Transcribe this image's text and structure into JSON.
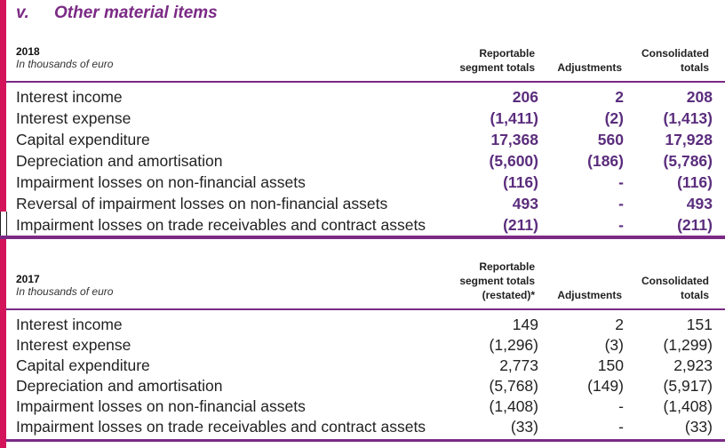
{
  "title": {
    "number": "v.",
    "text": "Other material items"
  },
  "sections": [
    {
      "year": "2018",
      "unit": "In thousands of euro",
      "col1": "Reportable segment totals",
      "col2": "Adjustments",
      "col3": "Consolidated totals",
      "rows": [
        [
          "Interest income",
          "206",
          "2",
          "208"
        ],
        [
          "Interest expense",
          "(1,411)",
          "(2)",
          "(1,413)"
        ],
        [
          "Capital expenditure",
          "17,368",
          "560",
          "17,928"
        ],
        [
          "Depreciation and amortisation",
          "(5,600)",
          "(186)",
          "(5,786)"
        ],
        [
          "Impairment losses on non-financial assets",
          "(116)",
          "-",
          "(116)"
        ],
        [
          "Reversal of impairment losses on non-financial assets",
          "493",
          "-",
          "493"
        ],
        [
          "Impairment losses on trade receivables and contract assets",
          "(211)",
          "-",
          "(211)"
        ]
      ]
    },
    {
      "year": "2017",
      "unit": "In thousands of euro",
      "col1": "Reportable segment totals (restated)*",
      "col2": "Adjustments",
      "col3": "Consolidated totals",
      "rows": [
        [
          "Interest income",
          "149",
          "2",
          "151"
        ],
        [
          "Interest expense",
          "(1,296)",
          "(3)",
          "(1,299)"
        ],
        [
          "Capital expenditure",
          "2,773",
          "150",
          "2,923"
        ],
        [
          "Depreciation and amortisation",
          "(5,768)",
          "(149)",
          "(5,917)"
        ],
        [
          "Impairment losses on non-financial assets",
          "(1,408)",
          "-",
          "(1,408)"
        ],
        [
          "Impairment losses on trade receivables and contract assets",
          "(33)",
          "-",
          "(33)"
        ]
      ]
    }
  ],
  "colors": {
    "accent_bar": "#d4145a",
    "rule": "#7b2a85",
    "bold_values": "#5b2d7d"
  }
}
